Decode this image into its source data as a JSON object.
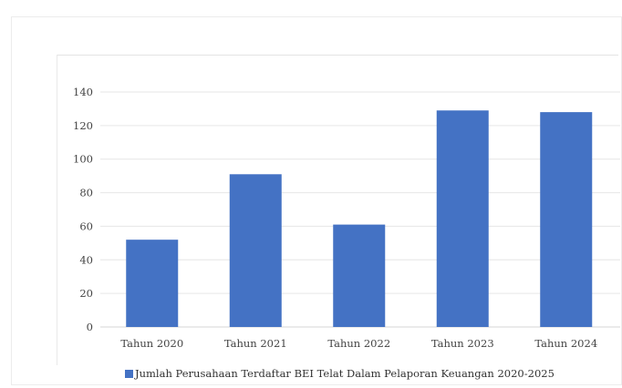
{
  "chart_data": {
    "type": "bar",
    "categories": [
      "Tahun 2020",
      "Tahun 2021",
      "Tahun 2022",
      "Tahun 2023",
      "Tahun 2024"
    ],
    "series": [
      {
        "name": "Jumlah Perusahaan Terdaftar BEI Telat Dalam Pelaporan Keuangan 2020-2025",
        "values": [
          52,
          91,
          61,
          129,
          128
        ],
        "color": "#4472c4"
      }
    ],
    "ylim": [
      0,
      140
    ],
    "yticks": [
      0,
      20,
      40,
      60,
      80,
      100,
      120,
      140
    ],
    "grid": true,
    "legend_position": "bottom",
    "title": "",
    "xlabel": "",
    "ylabel": ""
  },
  "legend": {
    "label": "Jumlah Perusahaan Terdaftar BEI Telat Dalam Pelaporan Keuangan 2020-2025",
    "color": "#4472c4"
  }
}
